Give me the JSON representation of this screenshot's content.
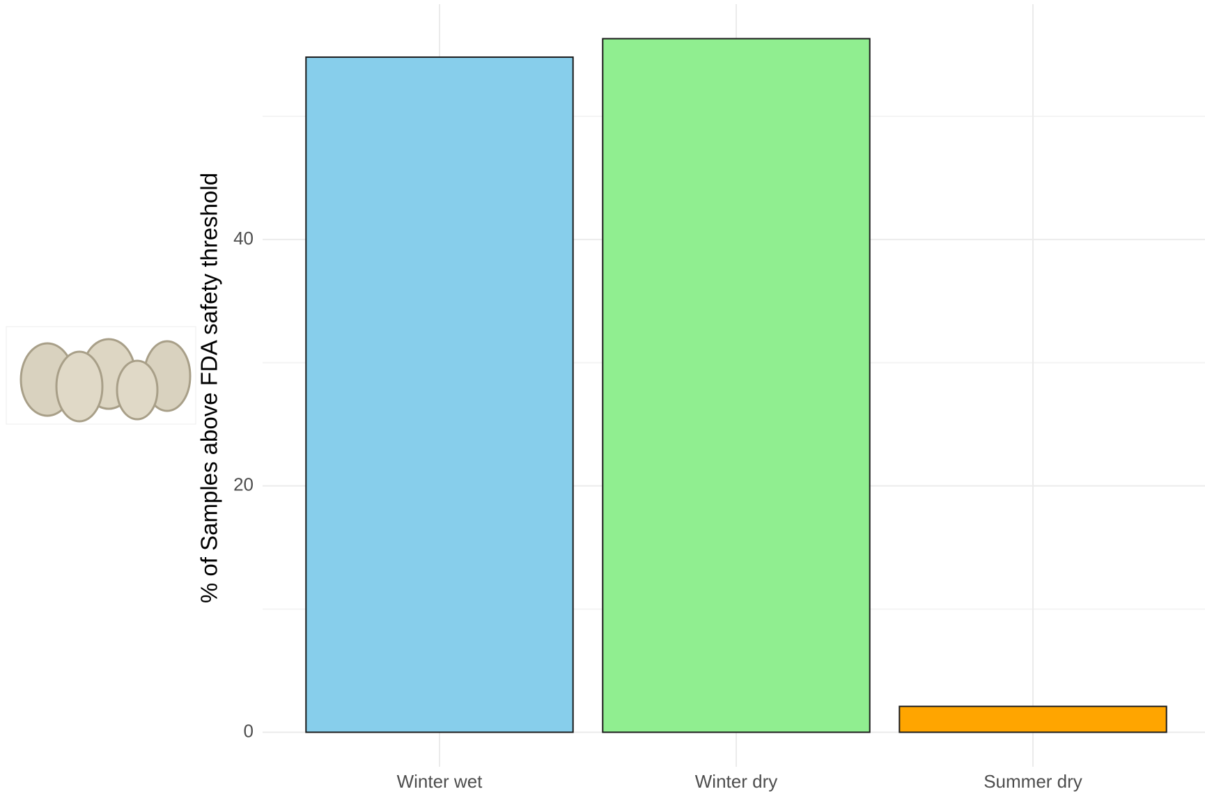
{
  "chart_data": {
    "type": "bar",
    "ylabel": "% of Samples above FDA safety threshold",
    "categories": [
      "Winter wet",
      "Winter dry",
      "Summer dry"
    ],
    "values": [
      54.8,
      56.3,
      2.1
    ],
    "colors": [
      "#87ceeb",
      "#90ee90",
      "#ffa500"
    ],
    "ylim": [
      -2.8,
      59.1
    ],
    "yticks": [
      0,
      20,
      40
    ],
    "minor_yticks": [
      10,
      30,
      50
    ],
    "grid": true
  }
}
